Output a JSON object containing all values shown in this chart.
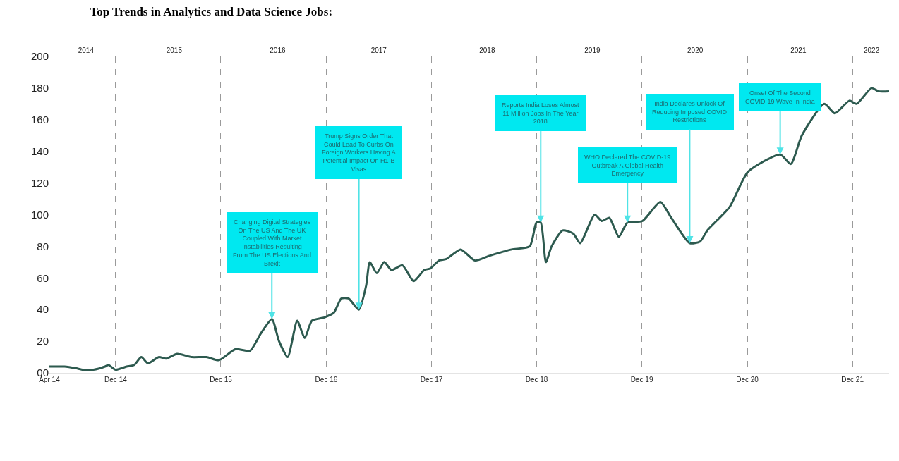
{
  "chart_data": {
    "type": "line",
    "title": "Top Trends in Analytics and Data Science Jobs:",
    "x": [
      "2014-04-15",
      "2014-06-06",
      "2014-07-15",
      "2014-08-10",
      "2014-09-15",
      "2014-10-25",
      "2014-11-06",
      "2014-12-01",
      "2015-01-08",
      "2015-02-03",
      "2015-02-28",
      "2015-03-23",
      "2015-04-30",
      "2015-05-25",
      "2015-07-02",
      "2015-08-22",
      "2015-10-12",
      "2015-11-24",
      "2016-01-21",
      "2016-03-11",
      "2016-04-18",
      "2016-05-26",
      "2016-06-20",
      "2016-07-20",
      "2016-08-22",
      "2016-09-17",
      "2016-10-12",
      "2016-11-24",
      "2016-12-27",
      "2017-01-22",
      "2017-02-16",
      "2017-03-24",
      "2017-04-18",
      "2017-05-01",
      "2017-05-25",
      "2017-06-20",
      "2017-07-15",
      "2017-08-22",
      "2017-09-30",
      "2017-11-06",
      "2017-11-27",
      "2017-12-27",
      "2018-01-22",
      "2018-03-12",
      "2018-05-01",
      "2018-06-20",
      "2018-09-05",
      "2018-11-07",
      "2018-11-30",
      "2018-12-15",
      "2019-01-02",
      "2019-01-22",
      "2019-03-01",
      "2019-04-07",
      "2019-05-01",
      "2019-06-20",
      "2019-07-15",
      "2019-08-10",
      "2019-09-12",
      "2019-10-12",
      "2019-12-03",
      "2020-02-03",
      "2020-03-12",
      "2020-05-15",
      "2020-06-20",
      "2020-07-15",
      "2020-10-01",
      "2020-12-03",
      "2021-03-25",
      "2021-05-01",
      "2021-06-08",
      "2021-08-25",
      "2021-10-01",
      "2021-11-20",
      "2021-12-15",
      "2022-02-05",
      "2022-03-01",
      "2022-04-07"
    ],
    "series": [
      {
        "color": "#2d5a4f",
        "values": [
          4,
          4,
          3,
          2,
          2,
          4,
          5,
          2,
          4,
          5,
          10,
          6,
          10,
          9,
          12,
          10,
          10,
          8,
          15,
          14,
          25,
          34,
          20,
          10,
          33,
          22,
          33,
          35,
          38,
          47,
          47,
          40,
          55,
          70,
          63,
          70,
          65,
          68,
          58,
          65,
          66,
          71,
          72,
          78,
          71,
          74,
          78,
          80,
          95,
          95,
          70,
          80,
          90,
          88,
          82,
          100,
          96,
          98,
          86,
          95,
          96,
          108,
          98,
          82,
          83,
          90,
          105,
          127,
          138,
          132,
          150,
          170,
          164,
          172,
          170,
          180,
          178,
          178
        ]
      }
    ],
    "xlim": [
      "2014-04-15",
      "2022-04-07"
    ],
    "xticks": [
      {
        "value": "2014-04-15",
        "label": "Apr 14"
      },
      {
        "value": "2014-12-01",
        "label": "Dec 14"
      },
      {
        "value": "2015-12-01",
        "label": "Dec 15"
      },
      {
        "value": "2016-12-01",
        "label": "Dec 16"
      },
      {
        "value": "2017-12-01",
        "label": "Dec 17"
      },
      {
        "value": "2018-12-01",
        "label": "Dec 18"
      },
      {
        "value": "2019-12-01",
        "label": "Dec 19"
      },
      {
        "value": "2020-12-01",
        "label": "Dec 20"
      },
      {
        "value": "2021-12-01",
        "label": "Dec 21"
      }
    ],
    "x2lim": [
      "2014-04-15",
      "2022-04-07"
    ],
    "x2ticks": [
      {
        "value": "2014-08-20",
        "label": "2014"
      },
      {
        "value": "2015-06-22",
        "label": "2015"
      },
      {
        "value": "2016-06-15",
        "label": "2016"
      },
      {
        "value": "2017-06-01",
        "label": "2017"
      },
      {
        "value": "2018-06-12",
        "label": "2018"
      },
      {
        "value": "2019-06-12",
        "label": "2019"
      },
      {
        "value": "2020-06-03",
        "label": "2020"
      },
      {
        "value": "2021-05-27",
        "label": "2021"
      },
      {
        "value": "2022-02-05",
        "label": "2022"
      }
    ],
    "ylim": [
      0,
      200
    ],
    "yticks": [
      {
        "value": 0,
        "label": "00"
      },
      20,
      40,
      60,
      80,
      100,
      120,
      140,
      160,
      180,
      200
    ],
    "annotations": [
      {
        "text": "Changing Digital Strategies On The US And The UK Coupled With Market Instabilities Resulting From The US Elections And Brexit",
        "x": "2016-05-26",
        "y": 34
      },
      {
        "text": "Trump Signs Order That Could Lead To Curbs On Foreign Workers Having A Potential Impact On H1-B Visas",
        "x": "2017-03-24",
        "y": 40
      },
      {
        "text": "Reports India Loses Almost 11 Million Jobs In The Year 2018",
        "x": "2018-12-15",
        "y": 95
      },
      {
        "text": "WHO Declared The COVID-19 Outbreak A Global Health Emergency",
        "x": "2019-10-12",
        "y": 95
      },
      {
        "text": "India Declares Unlock Of Reducing Imposed COVID Restrictions",
        "x": "2020-05-15",
        "y": 82
      },
      {
        "text": "Onset Of The Second COVID-19 Wave In India",
        "x": "2021-03-25",
        "y": 138
      }
    ],
    "grid": "x",
    "marker": "none",
    "line_style": "solid"
  }
}
